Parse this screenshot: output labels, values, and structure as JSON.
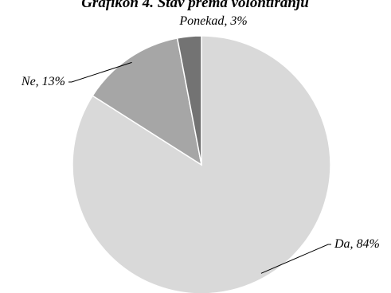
{
  "chart_data": {
    "type": "pie",
    "title": "Grafikon 4. Stav prema volontiranju",
    "categories": [
      "Da",
      "Ne",
      "Ponekad"
    ],
    "values": [
      84,
      13,
      3
    ],
    "labels": [
      "Da, 84%",
      "Ne, 13%",
      "Ponekad, 3%"
    ],
    "colors": [
      "#d9d9d9",
      "#a6a6a6",
      "#737373"
    ],
    "start_angle_deg": 0,
    "direction": "clockwise",
    "legend": "none",
    "data_labels": "outside with leader lines"
  }
}
